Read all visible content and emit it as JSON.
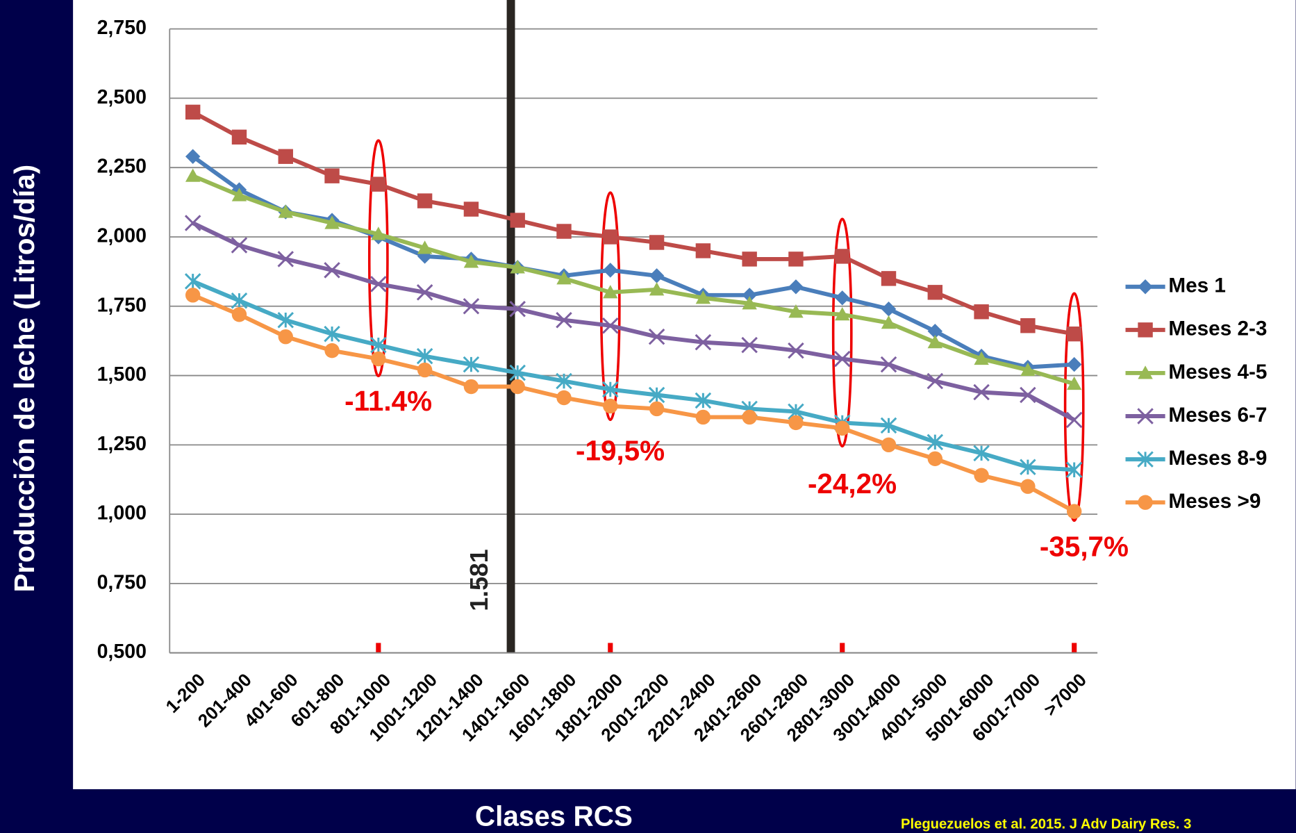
{
  "chart_data": {
    "type": "line",
    "y_label": "Producción de leche (Litros/día)",
    "x_label": "Clases RCS",
    "source": "Pleguezuelos et al. 2015. J Adv Dairy Res. 3",
    "categories": [
      "1-200",
      "201-400",
      "401-600",
      "601-800",
      "801-1000",
      "1001-1200",
      "1201-1400",
      "1401-1600",
      "1601-1800",
      "1801-2000",
      "2001-2200",
      "2201-2400",
      "2401-2600",
      "2601-2800",
      "2801-3000",
      "3001-4000",
      "4001-5000",
      "5001-6000",
      "6001-7000",
      ">7000"
    ],
    "ylim": [
      0.5,
      2.75
    ],
    "yticks": [
      {
        "value": 0.5,
        "label": "0,500"
      },
      {
        "value": 0.75,
        "label": "0,750"
      },
      {
        "value": 1.0,
        "label": "1,000"
      },
      {
        "value": 1.25,
        "label": "1,250"
      },
      {
        "value": 1.5,
        "label": "1,500"
      },
      {
        "value": 1.75,
        "label": "1,750"
      },
      {
        "value": 2.0,
        "label": "2,000"
      },
      {
        "value": 2.25,
        "label": "2,250"
      },
      {
        "value": 2.5,
        "label": "2,500"
      },
      {
        "value": 2.75,
        "label": "2,750"
      }
    ],
    "grid": true,
    "legend": "right",
    "series": [
      {
        "name": "Mes 1",
        "color": "#4a7ebb",
        "marker": "diamond",
        "values": [
          2.29,
          2.17,
          2.09,
          2.06,
          2.0,
          1.93,
          1.92,
          1.89,
          1.86,
          1.88,
          1.86,
          1.79,
          1.79,
          1.82,
          1.78,
          1.74,
          1.66,
          1.57,
          1.53,
          1.54
        ]
      },
      {
        "name": "Meses 2-3",
        "color": "#be4b48",
        "marker": "square",
        "values": [
          2.45,
          2.36,
          2.29,
          2.22,
          2.19,
          2.13,
          2.1,
          2.06,
          2.02,
          2.0,
          1.98,
          1.95,
          1.92,
          1.92,
          1.93,
          1.85,
          1.8,
          1.73,
          1.68,
          1.65
        ]
      },
      {
        "name": "Meses 4-5",
        "color": "#98b954",
        "marker": "triangle",
        "values": [
          2.22,
          2.15,
          2.09,
          2.05,
          2.01,
          1.96,
          1.91,
          1.89,
          1.85,
          1.8,
          1.81,
          1.78,
          1.76,
          1.73,
          1.72,
          1.69,
          1.62,
          1.56,
          1.52,
          1.47
        ]
      },
      {
        "name": "Meses 6-7",
        "color": "#7d60a0",
        "marker": "x",
        "values": [
          2.05,
          1.97,
          1.92,
          1.88,
          1.83,
          1.8,
          1.75,
          1.74,
          1.7,
          1.68,
          1.64,
          1.62,
          1.61,
          1.59,
          1.56,
          1.54,
          1.48,
          1.44,
          1.43,
          1.34
        ]
      },
      {
        "name": "Meses 8-9",
        "color": "#46aac5",
        "marker": "star",
        "values": [
          1.84,
          1.77,
          1.7,
          1.65,
          1.61,
          1.57,
          1.54,
          1.51,
          1.48,
          1.45,
          1.43,
          1.41,
          1.38,
          1.37,
          1.33,
          1.32,
          1.26,
          1.22,
          1.17,
          1.16
        ]
      },
      {
        "name": "Meses >9",
        "color": "#f79646",
        "marker": "circle",
        "values": [
          1.79,
          1.72,
          1.64,
          1.59,
          1.56,
          1.52,
          1.46,
          1.46,
          1.42,
          1.39,
          1.38,
          1.35,
          1.35,
          1.33,
          1.31,
          1.25,
          1.2,
          1.14,
          1.1,
          1.01
        ]
      }
    ],
    "threshold_label": "1.581",
    "annotations": [
      "-11.4%",
      "-19,5%",
      "-24,2%",
      "-35,7%"
    ]
  }
}
